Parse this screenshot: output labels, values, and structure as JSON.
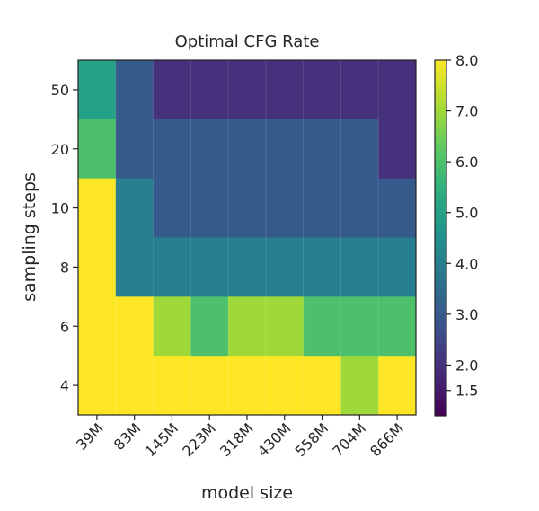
{
  "chart_data": {
    "type": "heatmap",
    "title": "Optimal CFG Rate",
    "xlabel": "model size",
    "ylabel": "sampling steps",
    "x_categories": [
      "39M",
      "83M",
      "145M",
      "223M",
      "318M",
      "430M",
      "558M",
      "704M",
      "866M"
    ],
    "y_categories": [
      "50",
      "20",
      "10",
      "8",
      "6",
      "4"
    ],
    "values": [
      [
        5.0,
        3.0,
        2.0,
        2.0,
        2.0,
        2.0,
        2.0,
        2.0,
        2.0
      ],
      [
        6.0,
        3.0,
        3.0,
        3.0,
        3.0,
        3.0,
        3.0,
        3.0,
        2.0
      ],
      [
        8.0,
        4.0,
        3.0,
        3.0,
        3.0,
        3.0,
        3.0,
        3.0,
        3.0
      ],
      [
        8.0,
        4.0,
        4.0,
        4.0,
        4.0,
        4.0,
        4.0,
        4.0,
        4.0
      ],
      [
        8.0,
        8.0,
        7.0,
        6.0,
        7.0,
        7.0,
        6.0,
        6.0,
        6.0
      ],
      [
        8.0,
        8.0,
        8.0,
        8.0,
        8.0,
        8.0,
        8.0,
        7.0,
        8.0
      ]
    ],
    "colormap": "viridis",
    "colorbar": {
      "range": [
        1.0,
        8.0
      ],
      "ticks": [
        8.0,
        7.0,
        6.0,
        5.0,
        4.0,
        3.0,
        2.0,
        1.5
      ],
      "tick_labels": [
        "8.0",
        "7.0",
        "6.0",
        "5.0",
        "4.0",
        "3.0",
        "2.0",
        "1.5"
      ],
      "placement": "right"
    },
    "grid": false,
    "x_tick_rotation_deg": 45
  }
}
